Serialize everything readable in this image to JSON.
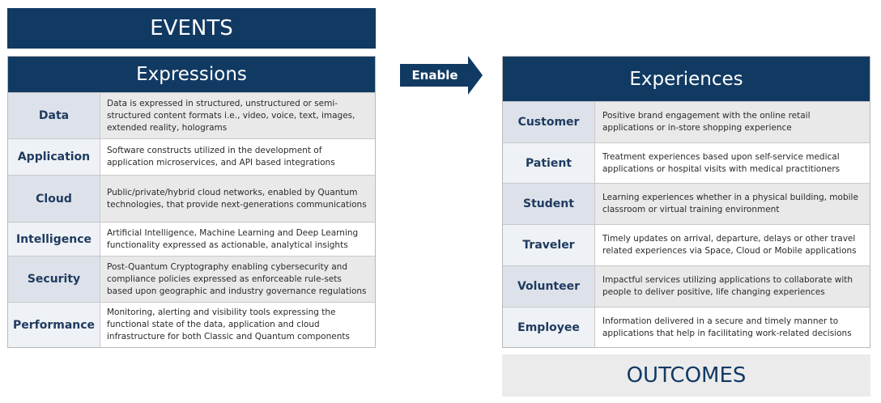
{
  "events": {
    "title": "EVENTS"
  },
  "expressions": {
    "title": "Expressions",
    "rows": [
      {
        "name": "Data",
        "desc": "Data is expressed in structured, unstructured or semi-structured content formats i.e., video, voice, text, images, extended reality, holograms"
      },
      {
        "name": "Application",
        "desc": "Software constructs utilized in the development of application microservices, and API based integrations"
      },
      {
        "name": "Cloud",
        "desc": "Public/private/hybrid cloud networks, enabled by Quantum technologies, that provide next-generations communications"
      },
      {
        "name": "Intelligence",
        "desc": "Artificial Intelligence, Machine Learning and Deep Learning functionality expressed as actionable, analytical insights"
      },
      {
        "name": "Security",
        "desc": "Post-Quantum Cryptography enabling cybersecurity and compliance policies expressed as enforceable rule-sets based upon geographic and industry governance regulations"
      },
      {
        "name": "Performance",
        "desc": "Monitoring, alerting and visibility tools expressing the functional state of the data, application and cloud infrastructure for both Classic and Quantum components"
      }
    ]
  },
  "arrow": {
    "label": "Enable"
  },
  "experiences": {
    "title": "Experiences",
    "rows": [
      {
        "name": "Customer",
        "desc": "Positive brand engagement with the online retail applications or in-store shopping experience"
      },
      {
        "name": "Patient",
        "desc": "Treatment experiences based upon self-service medical applications or hospital visits with medical practitioners"
      },
      {
        "name": "Student",
        "desc": "Learning experiences whether in a physical building, mobile classroom or virtual training environment"
      },
      {
        "name": "Traveler",
        "desc": "Timely updates on arrival, departure, delays or other travel related experiences via Space, Cloud or Mobile applications"
      },
      {
        "name": "Volunteer",
        "desc": "Impactful services utilizing applications to collaborate with people to deliver positive, life changing experiences"
      },
      {
        "name": "Employee",
        "desc": "Information delivered in a secure and timely manner to applications that help in facilitating work-related decisions"
      }
    ]
  },
  "outcomes": {
    "title": "OUTCOMES"
  },
  "colors": {
    "navy": "#113a63",
    "row_alt": "#e9e9e9",
    "outcomes_bg": "#ebebeb"
  }
}
